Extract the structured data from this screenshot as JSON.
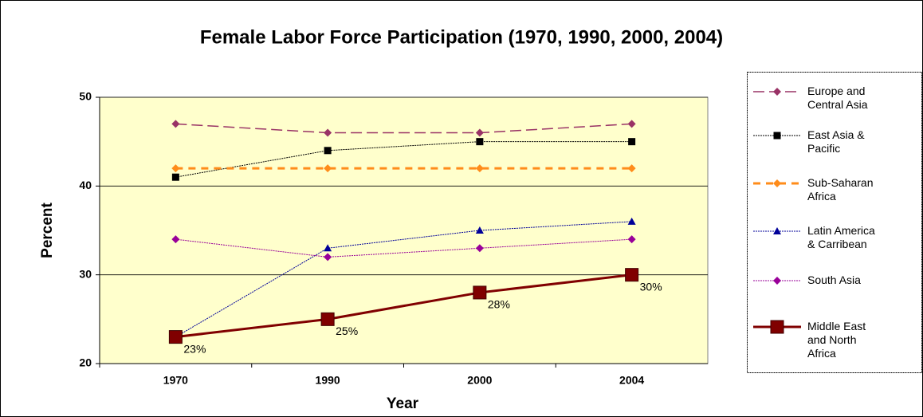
{
  "chart_data": {
    "type": "line",
    "title": "Female Labor Force Participation (1970, 1990, 2000, 2004)",
    "x_label": "Year",
    "y_label": "Percent",
    "categories": [
      "1970",
      "1990",
      "2000",
      "2004"
    ],
    "ylim": [
      20,
      50
    ],
    "yticks": [
      20,
      30,
      40,
      50
    ],
    "grid": true,
    "legend": "right",
    "series": [
      {
        "name": "Europe and Central Asia",
        "color": "#993366",
        "values": [
          47,
          46,
          46,
          47
        ]
      },
      {
        "name": "East Asia & Pacific",
        "color": "#000000",
        "values": [
          41,
          44,
          45,
          45
        ]
      },
      {
        "name": "Sub-Saharan Africa",
        "color": "#ff8c1a",
        "values": [
          42,
          42,
          42,
          42
        ]
      },
      {
        "name": "Latin America & Carribean",
        "color": "#000099",
        "values": [
          23,
          33,
          35,
          36
        ]
      },
      {
        "name": "South Asia",
        "color": "#990099",
        "values": [
          34,
          32,
          33,
          34
        ]
      },
      {
        "name": "Middle East and North Africa",
        "color": "#800000",
        "values": [
          23,
          25,
          28,
          30
        ],
        "value_labels": [
          "23%",
          "25%",
          "28%",
          "30%"
        ]
      }
    ]
  }
}
